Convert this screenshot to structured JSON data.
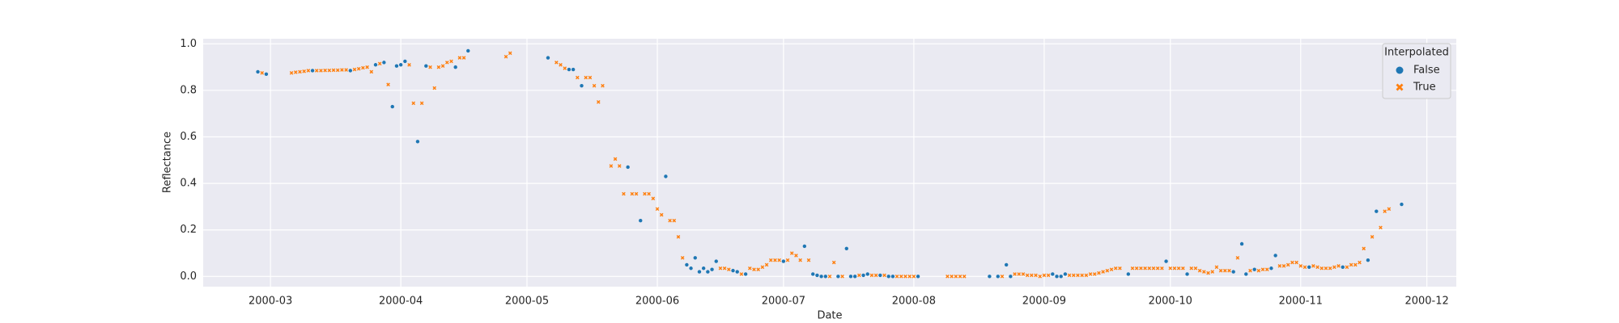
{
  "chart_data": {
    "type": "scatter",
    "xlabel": "Date",
    "ylabel": "Reflectance",
    "legend_title": "Interpolated",
    "legend": "upper right",
    "grid": true,
    "xlim": [
      "2000-02-14",
      "2000-12-08"
    ],
    "xticks": [
      {
        "value": "2000-03-01",
        "label": "2000-03"
      },
      {
        "value": "2000-04-01",
        "label": "2000-04"
      },
      {
        "value": "2000-05-01",
        "label": "2000-05"
      },
      {
        "value": "2000-06-01",
        "label": "2000-06"
      },
      {
        "value": "2000-07-01",
        "label": "2000-07"
      },
      {
        "value": "2000-08-01",
        "label": "2000-08"
      },
      {
        "value": "2000-09-01",
        "label": "2000-09"
      },
      {
        "value": "2000-10-01",
        "label": "2000-10"
      },
      {
        "value": "2000-11-01",
        "label": "2000-11"
      },
      {
        "value": "2000-12-01",
        "label": "2000-12"
      }
    ],
    "ylim": [
      -0.044,
      1.022
    ],
    "yticks": [
      {
        "value": 0,
        "label": "0.0"
      },
      {
        "value": 0.2,
        "label": "0.2"
      },
      {
        "value": 0.4,
        "label": "0.4"
      },
      {
        "value": 0.6,
        "label": "0.6"
      },
      {
        "value": 0.8,
        "label": "0.8"
      },
      {
        "value": 1,
        "label": "1.0"
      }
    ],
    "series": [
      {
        "name": "False",
        "color": "#1f77b4",
        "marker": "circle",
        "x": [
          "2000-02-27",
          "2000-02-29",
          "2000-03-11",
          "2000-03-20",
          "2000-03-26",
          "2000-03-28",
          "2000-03-30",
          "2000-03-31",
          "2000-04-01",
          "2000-04-02",
          "2000-04-05",
          "2000-04-07",
          "2000-04-14",
          "2000-04-17",
          "2000-05-06",
          "2000-05-11",
          "2000-05-12",
          "2000-05-14",
          "2000-05-25",
          "2000-05-28",
          "2000-06-03",
          "2000-06-08",
          "2000-06-09",
          "2000-06-10",
          "2000-06-11",
          "2000-06-12",
          "2000-06-13",
          "2000-06-14",
          "2000-06-15",
          "2000-06-19",
          "2000-06-20",
          "2000-06-22",
          "2000-07-01",
          "2000-07-06",
          "2000-07-08",
          "2000-07-09",
          "2000-07-10",
          "2000-07-11",
          "2000-07-14",
          "2000-07-16",
          "2000-07-17",
          "2000-07-18",
          "2000-07-20",
          "2000-07-21",
          "2000-07-24",
          "2000-07-26",
          "2000-07-27",
          "2000-08-02",
          "2000-08-19",
          "2000-08-21",
          "2000-08-23",
          "2000-08-24",
          "2000-09-03",
          "2000-09-04",
          "2000-09-05",
          "2000-09-06",
          "2000-09-21",
          "2000-09-30",
          "2000-10-05",
          "2000-10-16",
          "2000-10-18",
          "2000-10-19",
          "2000-10-21",
          "2000-10-25",
          "2000-10-26",
          "2000-11-03",
          "2000-11-11",
          "2000-11-17",
          "2000-11-19",
          "2000-11-25"
        ],
        "values": [
          0.88,
          0.87,
          0.885,
          0.885,
          0.91,
          0.92,
          0.73,
          0.905,
          0.91,
          0.925,
          0.58,
          0.905,
          0.9,
          0.97,
          0.94,
          0.89,
          0.89,
          0.82,
          0.47,
          0.24,
          0.43,
          0.05,
          0.035,
          0.08,
          0.02,
          0.035,
          0.02,
          0.03,
          0.065,
          0.025,
          0.02,
          0.01,
          0.065,
          0.13,
          0.01,
          0.005,
          0,
          0,
          0,
          0.12,
          0,
          0,
          0.005,
          0.01,
          0.005,
          0,
          0,
          0,
          0,
          0,
          0.05,
          0,
          0.01,
          0,
          0,
          0.01,
          0.01,
          0.065,
          0.01,
          0.02,
          0.14,
          0.01,
          0.03,
          0.035,
          0.09,
          0.04,
          0.04,
          0.07,
          0.28,
          0.31
        ]
      },
      {
        "name": "True",
        "color": "#ff7f0e",
        "marker": "x",
        "x": [
          "2000-02-28",
          "2000-03-06",
          "2000-03-07",
          "2000-03-08",
          "2000-03-09",
          "2000-03-10",
          "2000-03-12",
          "2000-03-13",
          "2000-03-14",
          "2000-03-15",
          "2000-03-16",
          "2000-03-17",
          "2000-03-18",
          "2000-03-19",
          "2000-03-21",
          "2000-03-22",
          "2000-03-23",
          "2000-03-24",
          "2000-03-25",
          "2000-03-27",
          "2000-03-29",
          "2000-04-03",
          "2000-04-04",
          "2000-04-06",
          "2000-04-08",
          "2000-04-09",
          "2000-04-10",
          "2000-04-11",
          "2000-04-12",
          "2000-04-13",
          "2000-04-15",
          "2000-04-16",
          "2000-04-26",
          "2000-04-27",
          "2000-05-08",
          "2000-05-09",
          "2000-05-10",
          "2000-05-13",
          "2000-05-15",
          "2000-05-16",
          "2000-05-17",
          "2000-05-18",
          "2000-05-19",
          "2000-05-21",
          "2000-05-22",
          "2000-05-23",
          "2000-05-24",
          "2000-05-26",
          "2000-05-27",
          "2000-05-29",
          "2000-05-30",
          "2000-05-31",
          "2000-06-01",
          "2000-06-02",
          "2000-06-04",
          "2000-06-05",
          "2000-06-06",
          "2000-06-07",
          "2000-06-16",
          "2000-06-17",
          "2000-06-18",
          "2000-06-21",
          "2000-06-23",
          "2000-06-24",
          "2000-06-25",
          "2000-06-26",
          "2000-06-27",
          "2000-06-28",
          "2000-06-29",
          "2000-06-30",
          "2000-07-02",
          "2000-07-03",
          "2000-07-04",
          "2000-07-05",
          "2000-07-07",
          "2000-07-12",
          "2000-07-13",
          "2000-07-15",
          "2000-07-19",
          "2000-07-22",
          "2000-07-23",
          "2000-07-25",
          "2000-07-28",
          "2000-07-29",
          "2000-07-30",
          "2000-07-31",
          "2000-08-01",
          "2000-08-09",
          "2000-08-10",
          "2000-08-11",
          "2000-08-12",
          "2000-08-13",
          "2000-08-22",
          "2000-08-25",
          "2000-08-26",
          "2000-08-27",
          "2000-08-28",
          "2000-08-29",
          "2000-08-30",
          "2000-08-31",
          "2000-09-01",
          "2000-09-02",
          "2000-09-07",
          "2000-09-08",
          "2000-09-09",
          "2000-09-10",
          "2000-09-11",
          "2000-09-12",
          "2000-09-13",
          "2000-09-14",
          "2000-09-15",
          "2000-09-16",
          "2000-09-17",
          "2000-09-18",
          "2000-09-19",
          "2000-09-22",
          "2000-09-23",
          "2000-09-24",
          "2000-09-25",
          "2000-09-26",
          "2000-09-27",
          "2000-09-28",
          "2000-09-29",
          "2000-10-01",
          "2000-10-02",
          "2000-10-03",
          "2000-10-04",
          "2000-10-06",
          "2000-10-07",
          "2000-10-08",
          "2000-10-09",
          "2000-10-10",
          "2000-10-11",
          "2000-10-12",
          "2000-10-13",
          "2000-10-14",
          "2000-10-15",
          "2000-10-17",
          "2000-10-20",
          "2000-10-22",
          "2000-10-23",
          "2000-10-24",
          "2000-10-27",
          "2000-10-28",
          "2000-10-29",
          "2000-10-30",
          "2000-10-31",
          "2000-11-01",
          "2000-11-02",
          "2000-11-04",
          "2000-11-05",
          "2000-11-06",
          "2000-11-07",
          "2000-11-08",
          "2000-11-09",
          "2000-11-10",
          "2000-11-12",
          "2000-11-13",
          "2000-11-14",
          "2000-11-15",
          "2000-11-16",
          "2000-11-18",
          "2000-11-20",
          "2000-11-21",
          "2000-11-22"
        ],
        "values": [
          0.875,
          0.875,
          0.878,
          0.88,
          0.882,
          0.885,
          0.885,
          0.885,
          0.886,
          0.886,
          0.887,
          0.887,
          0.888,
          0.888,
          0.89,
          0.893,
          0.897,
          0.9,
          0.88,
          0.915,
          0.825,
          0.91,
          0.745,
          0.745,
          0.9,
          0.81,
          0.9,
          0.905,
          0.92,
          0.925,
          0.94,
          0.94,
          0.945,
          0.96,
          0.92,
          0.91,
          0.895,
          0.855,
          0.855,
          0.855,
          0.82,
          0.75,
          0.82,
          0.475,
          0.505,
          0.475,
          0.355,
          0.355,
          0.355,
          0.355,
          0.355,
          0.335,
          0.29,
          0.265,
          0.24,
          0.24,
          0.17,
          0.08,
          0.035,
          0.035,
          0.03,
          0.01,
          0.035,
          0.03,
          0.03,
          0.04,
          0.05,
          0.07,
          0.07,
          0.07,
          0.07,
          0.1,
          0.09,
          0.07,
          0.07,
          0,
          0.06,
          0,
          0.005,
          0.005,
          0.005,
          0.005,
          0,
          0,
          0,
          0,
          0,
          0,
          0,
          0,
          0,
          0,
          0,
          0.01,
          0.01,
          0.01,
          0.005,
          0.005,
          0.005,
          0,
          0.005,
          0.005,
          0.005,
          0.005,
          0.005,
          0.005,
          0.005,
          0.01,
          0.01,
          0.015,
          0.02,
          0.025,
          0.03,
          0.035,
          0.035,
          0.035,
          0.035,
          0.035,
          0.035,
          0.035,
          0.035,
          0.035,
          0.035,
          0.035,
          0.035,
          0.035,
          0.035,
          0.035,
          0.035,
          0.025,
          0.02,
          0.015,
          0.02,
          0.04,
          0.025,
          0.025,
          0.025,
          0.08,
          0.025,
          0.025,
          0.03,
          0.03,
          0.045,
          0.045,
          0.05,
          0.06,
          0.06,
          0.045,
          0.04,
          0.045,
          0.04,
          0.035,
          0.035,
          0.035,
          0.04,
          0.045,
          0.04,
          0.05,
          0.05,
          0.06,
          0.12,
          0.17,
          0.21,
          0.28,
          0.29
        ]
      }
    ]
  }
}
